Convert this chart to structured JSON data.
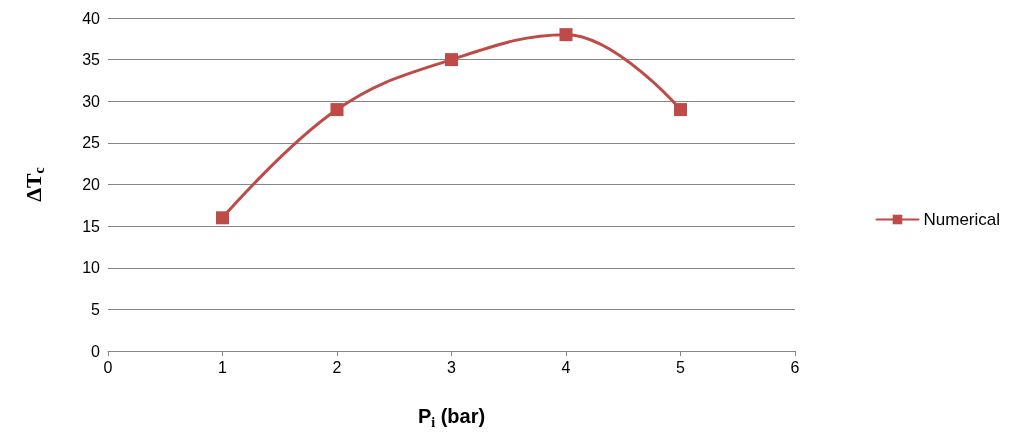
{
  "chart_data": {
    "type": "line",
    "xlabel": "P$_{i}$ (bar)",
    "ylabel": "ΔT$_{c}$",
    "x": [
      1,
      2,
      3,
      4,
      5
    ],
    "series": [
      {
        "name": "Numerical",
        "color": "#be4b48",
        "values": [
          16,
          29,
          35,
          38,
          29
        ]
      }
    ],
    "xlim": [
      0,
      6
    ],
    "xticks": [
      0,
      1,
      2,
      3,
      4,
      5,
      6
    ],
    "ylim": [
      0,
      40
    ],
    "yticks": [
      0,
      5,
      10,
      15,
      20,
      25,
      30,
      35,
      40
    ],
    "grid": "y",
    "legend": "right",
    "marker": "square",
    "line_style": "solid"
  }
}
